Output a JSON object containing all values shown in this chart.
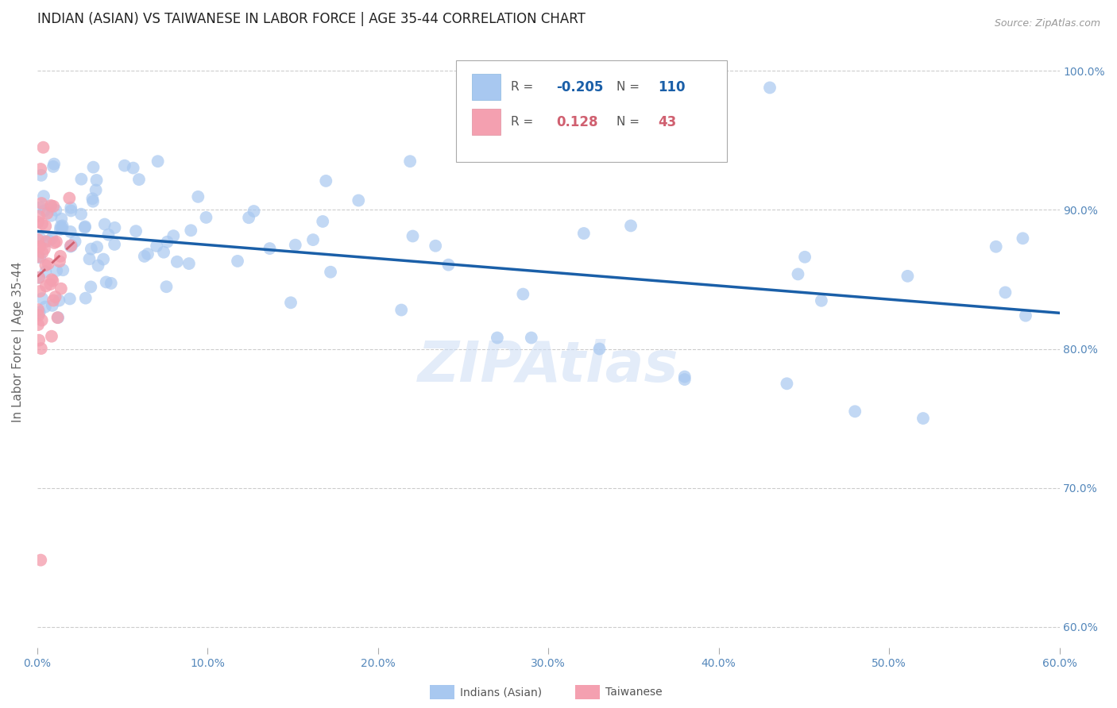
{
  "title": "INDIAN (ASIAN) VS TAIWANESE IN LABOR FORCE | AGE 35-44 CORRELATION CHART",
  "source": "Source: ZipAtlas.com",
  "ylabel": "In Labor Force | Age 35-44",
  "xlim": [
    0.0,
    0.6
  ],
  "ylim": [
    0.585,
    1.025
  ],
  "yticks": [
    0.6,
    0.7,
    0.8,
    0.9,
    1.0
  ],
  "yticklabels": [
    "60.0%",
    "70.0%",
    "80.0%",
    "90.0%",
    "100.0%"
  ],
  "xtick_vals": [
    0.0,
    0.1,
    0.2,
    0.3,
    0.4,
    0.5,
    0.6
  ],
  "xticklabels": [
    "0.0%",
    "10.0%",
    "20.0%",
    "30.0%",
    "40.0%",
    "50.0%",
    "60.0%"
  ],
  "legend_r_blue": "-0.205",
  "legend_n_blue": "110",
  "legend_r_pink": "0.128",
  "legend_n_pink": "43",
  "blue_color": "#a8c8f0",
  "blue_line_color": "#1a5fa8",
  "pink_color": "#f4a0b0",
  "pink_line_color": "#d06070",
  "watermark": "ZIPAtlas",
  "title_fontsize": 12,
  "label_fontsize": 11,
  "tick_fontsize": 10,
  "blue_seed": 77,
  "pink_seed": 88
}
